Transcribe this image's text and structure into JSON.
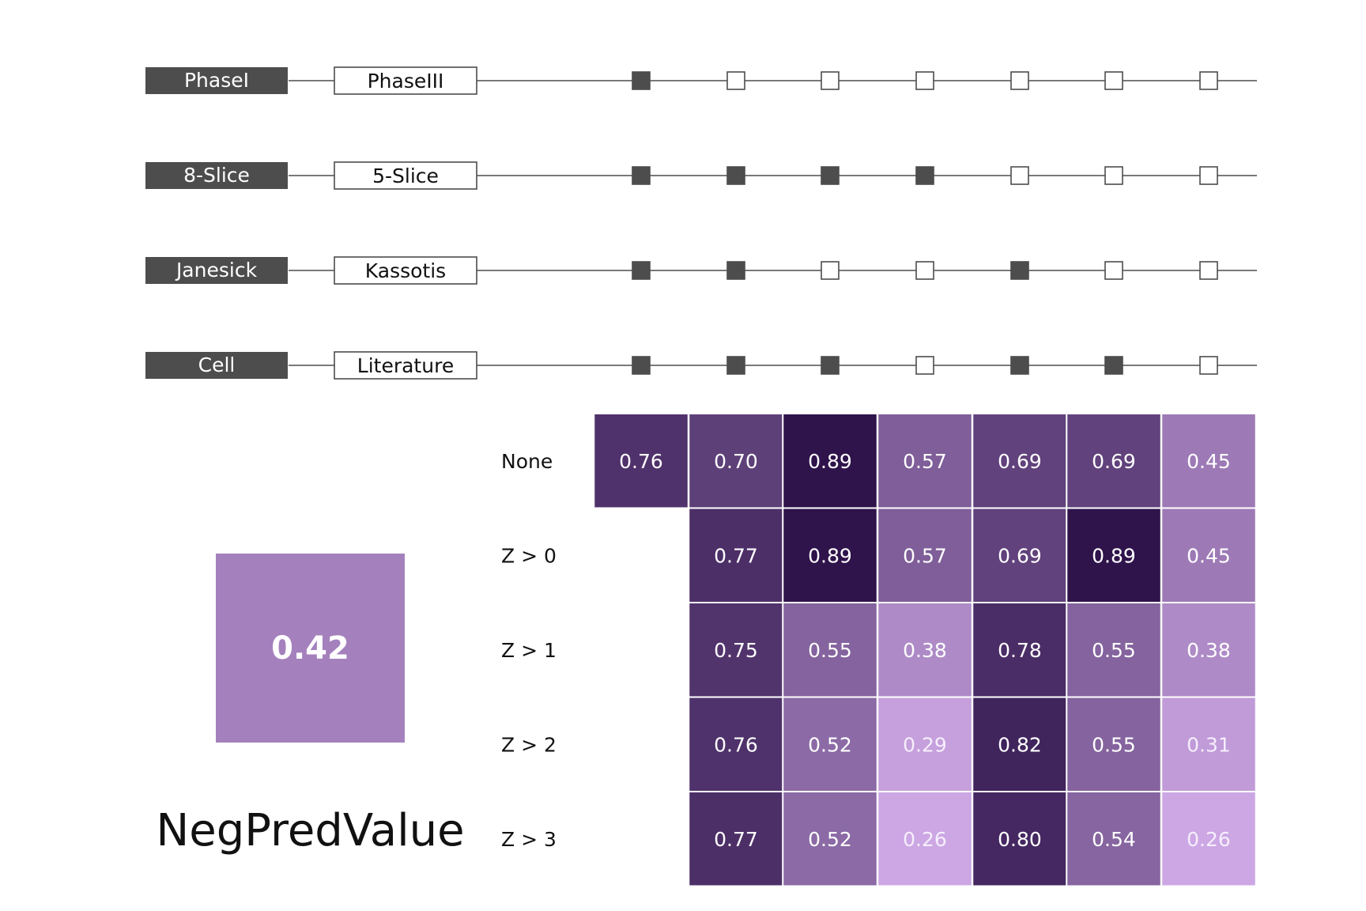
{
  "chart_data": {
    "type": "heatmap",
    "metric": "NegPredValue",
    "reference_value": "0.42",
    "reference_level": 0.42,
    "colors": {
      "dark_label_bg": "#4d4d4d",
      "marker_filled": "#4d4d4d",
      "line": "#4d4d4d",
      "heat_low": "#cfa9e6",
      "heat_high": "#2c1149"
    },
    "setting_rows": [
      {
        "left": "PhaseI",
        "right": "PhaseIII",
        "markers": [
          1,
          0,
          0,
          0,
          0,
          0,
          0
        ]
      },
      {
        "left": "8-Slice",
        "right": "5-Slice",
        "markers": [
          1,
          1,
          1,
          1,
          0,
          0,
          0
        ]
      },
      {
        "left": "Janesick",
        "right": "Kassotis",
        "markers": [
          1,
          1,
          0,
          0,
          1,
          0,
          0
        ]
      },
      {
        "left": "Cell",
        "right": "Literature",
        "markers": [
          1,
          1,
          1,
          0,
          1,
          1,
          0
        ]
      }
    ],
    "row_labels": [
      "None",
      "Z > 0",
      "Z > 1",
      "Z > 2",
      "Z > 3"
    ],
    "values": [
      [
        0.76,
        0.7,
        0.89,
        0.57,
        0.69,
        0.69,
        0.45
      ],
      [
        null,
        0.77,
        0.89,
        0.57,
        0.69,
        0.89,
        0.45
      ],
      [
        null,
        0.75,
        0.55,
        0.38,
        0.78,
        0.55,
        0.38
      ],
      [
        null,
        0.76,
        0.52,
        0.29,
        0.82,
        0.55,
        0.31
      ],
      [
        null,
        0.77,
        0.52,
        0.26,
        0.8,
        0.54,
        0.26
      ]
    ],
    "value_labels": [
      [
        "0.76",
        "0.70",
        "0.89",
        "0.57",
        "0.69",
        "0.69",
        "0.45"
      ],
      [
        "",
        "0.77",
        "0.89",
        "0.57",
        "0.69",
        "0.89",
        "0.45"
      ],
      [
        "",
        "0.75",
        "0.55",
        "0.38",
        "0.78",
        "0.55",
        "0.38"
      ],
      [
        "",
        "0.76",
        "0.52",
        "0.29",
        "0.82",
        "0.55",
        "0.31"
      ],
      [
        "",
        "0.77",
        "0.52",
        "0.26",
        "0.80",
        "0.54",
        "0.26"
      ]
    ]
  }
}
